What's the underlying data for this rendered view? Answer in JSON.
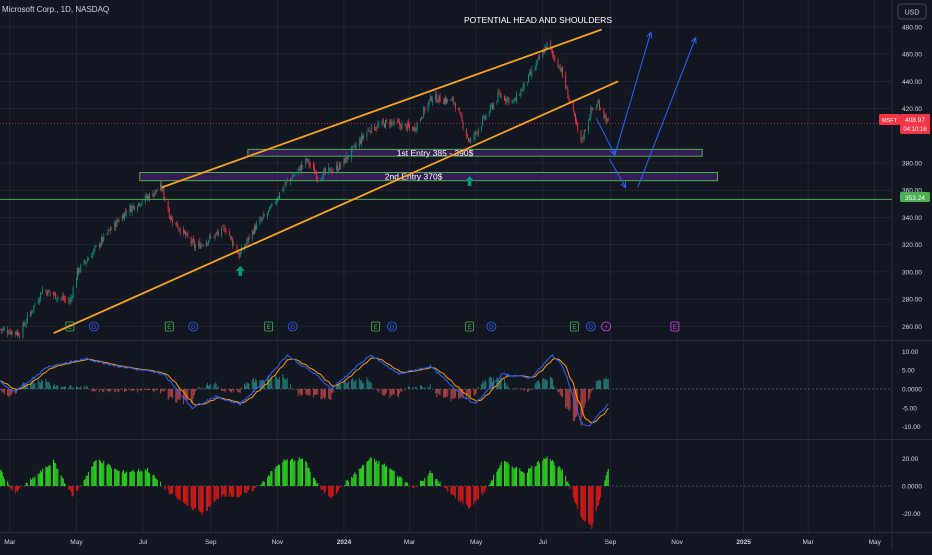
{
  "header": {
    "symbol_line": "Microsoft Corp., 1D, NASDAQ",
    "currency_button": "USD"
  },
  "chart_data": {
    "type": "candlestick",
    "title": "POTENTIAL HEAD AND SHOULDERS",
    "symbol": "MSFT",
    "ticker_label": "MSFT",
    "last_price": "408.97",
    "countdown": "04:10:16",
    "price_ticks": [
      "480.00",
      "460.00",
      "440.00",
      "420.00",
      "380.00",
      "360.00",
      "340.00",
      "320.00",
      "300.00",
      "280.00",
      "260.00"
    ],
    "price_range": [
      250,
      485
    ],
    "support_level": {
      "label": "353.24",
      "price": 353.24
    },
    "time_ticks": [
      "Mar",
      "May",
      "Jul",
      "Sep",
      "Nov",
      "2024",
      "Mar",
      "May",
      "Jul",
      "Sep",
      "Nov",
      "2025",
      "Mar",
      "May"
    ],
    "price_series": {
      "points": [
        [
          "2023-02-20",
          258
        ],
        [
          "2023-03-10",
          255
        ],
        [
          "2023-03-31",
          287
        ],
        [
          "2023-04-25",
          278
        ],
        [
          "2023-05-02",
          300
        ],
        [
          "2023-05-31",
          330
        ],
        [
          "2023-06-16",
          345
        ],
        [
          "2023-07-18",
          362
        ],
        [
          "2023-07-26",
          340
        ],
        [
          "2023-08-18",
          318
        ],
        [
          "2023-09-15",
          332
        ],
        [
          "2023-09-27",
          312
        ],
        [
          "2023-10-11",
          332
        ],
        [
          "2023-10-25",
          345
        ],
        [
          "2023-11-06",
          362
        ],
        [
          "2023-11-28",
          382
        ],
        [
          "2023-12-08",
          370
        ],
        [
          "2023-12-29",
          378
        ],
        [
          "2024-01-24",
          405
        ],
        [
          "2024-02-12",
          410
        ],
        [
          "2024-03-05",
          405
        ],
        [
          "2024-03-21",
          428
        ],
        [
          "2024-04-11",
          425
        ],
        [
          "2024-04-25",
          395
        ],
        [
          "2024-05-22",
          430
        ],
        [
          "2024-06-05",
          425
        ],
        [
          "2024-06-20",
          445
        ],
        [
          "2024-07-05",
          467
        ],
        [
          "2024-07-17",
          450
        ],
        [
          "2024-07-24",
          430
        ],
        [
          "2024-08-05",
          395
        ],
        [
          "2024-08-14",
          418
        ],
        [
          "2024-08-21",
          424
        ],
        [
          "2024-08-30",
          408.97
        ]
      ]
    },
    "upper_trendline": {
      "from": [
        "2023-07-18",
        362
      ],
      "to": [
        "2024-08-24",
        478
      ]
    },
    "lower_trendline": {
      "from": [
        "2023-04-10",
        255
      ],
      "to": [
        "2024-09-08",
        440
      ]
    },
    "entry_zones": [
      {
        "label": "1st Entry 385 - 390$",
        "low": 385,
        "high": 390
      },
      {
        "label": "2nd Entry 370$",
        "low": 367,
        "high": 373
      }
    ],
    "projection_arrows": [
      {
        "from": [
          "2024-08-19",
          413
        ],
        "to": [
          "2024-09-05",
          386
        ]
      },
      {
        "from": [
          "2024-09-05",
          386
        ],
        "to": [
          "2024-10-08",
          476
        ]
      },
      {
        "from": [
          "2024-08-31",
          383
        ],
        "to": [
          "2024-09-15",
          362
        ]
      },
      {
        "from": [
          "2024-09-26",
          362
        ],
        "to": [
          "2024-11-18",
          472
        ]
      }
    ],
    "up_markers": [
      [
        "2023-09-28",
        300
      ],
      [
        "2024-04-25",
        366
      ]
    ],
    "event_markers": [
      {
        "type": "E",
        "date": "2023-04-25"
      },
      {
        "type": "D",
        "date": "2023-05-17"
      },
      {
        "type": "E",
        "date": "2023-07-25"
      },
      {
        "type": "D",
        "date": "2023-08-16"
      },
      {
        "type": "E",
        "date": "2023-10-24"
      },
      {
        "type": "D",
        "date": "2023-11-15"
      },
      {
        "type": "E",
        "date": "2024-01-30"
      },
      {
        "type": "D",
        "date": "2024-02-14"
      },
      {
        "type": "E",
        "date": "2024-04-25"
      },
      {
        "type": "D",
        "date": "2024-05-15"
      },
      {
        "type": "E",
        "date": "2024-07-30"
      },
      {
        "type": "D",
        "date": "2024-08-14"
      },
      {
        "type": "S",
        "date": "2024-08-28"
      },
      {
        "type": "E",
        "date": "2024-10-30"
      }
    ],
    "oscillator1": {
      "ticks": [
        "10.00",
        "5.00",
        "0.0000",
        "-5.00",
        "-10.00"
      ],
      "range": [
        -12.5,
        12.5
      ],
      "points": [
        [
          "2023-02-20",
          2
        ],
        [
          "2023-03-05",
          -1
        ],
        [
          "2023-04-05",
          6
        ],
        [
          "2023-05-10",
          8
        ],
        [
          "2023-06-10",
          6
        ],
        [
          "2023-07-20",
          4
        ],
        [
          "2023-08-15",
          -5
        ],
        [
          "2023-09-05",
          -2
        ],
        [
          "2023-09-28",
          -4
        ],
        [
          "2023-10-20",
          2
        ],
        [
          "2023-11-10",
          9
        ],
        [
          "2023-12-10",
          3
        ],
        [
          "2023-12-20",
          0
        ],
        [
          "2024-01-25",
          9
        ],
        [
          "2024-02-20",
          4
        ],
        [
          "2024-03-20",
          6
        ],
        [
          "2024-04-20",
          -2
        ],
        [
          "2024-04-30",
          -4
        ],
        [
          "2024-05-25",
          4
        ],
        [
          "2024-06-20",
          3
        ],
        [
          "2024-07-10",
          9
        ],
        [
          "2024-07-20",
          6
        ],
        [
          "2024-08-05",
          -9
        ],
        [
          "2024-08-12",
          -10
        ],
        [
          "2024-08-30",
          -4
        ]
      ]
    },
    "oscillator2": {
      "ticks": [
        "20.00",
        "0.0000",
        "-20.00"
      ],
      "range": [
        -32,
        32
      ],
      "points": [
        [
          "2023-02-20",
          12
        ],
        [
          "2023-03-05",
          -6
        ],
        [
          "2023-04-10",
          18
        ],
        [
          "2023-04-28",
          -8
        ],
        [
          "2023-05-20",
          20
        ],
        [
          "2023-06-10",
          10
        ],
        [
          "2023-07-05",
          12
        ],
        [
          "2023-07-25",
          -5
        ],
        [
          "2023-08-10",
          -14
        ],
        [
          "2023-08-25",
          -20
        ],
        [
          "2023-09-12",
          -6
        ],
        [
          "2023-09-28",
          -8
        ],
        [
          "2023-10-15",
          0
        ],
        [
          "2023-11-05",
          18
        ],
        [
          "2023-11-25",
          20
        ],
        [
          "2023-12-10",
          -2
        ],
        [
          "2023-12-20",
          -8
        ],
        [
          "2024-01-05",
          4
        ],
        [
          "2024-01-25",
          20
        ],
        [
          "2024-02-10",
          14
        ],
        [
          "2024-03-05",
          -2
        ],
        [
          "2024-03-20",
          10
        ],
        [
          "2024-04-05",
          -4
        ],
        [
          "2024-04-25",
          -16
        ],
        [
          "2024-05-10",
          -3
        ],
        [
          "2024-05-25",
          18
        ],
        [
          "2024-06-15",
          10
        ],
        [
          "2024-07-05",
          22
        ],
        [
          "2024-07-20",
          10
        ],
        [
          "2024-08-05",
          -22
        ],
        [
          "2024-08-15",
          -30
        ],
        [
          "2024-08-30",
          12
        ]
      ]
    },
    "colors": {
      "background": "#131722",
      "up": "#089981",
      "down": "#f23645",
      "trendline": "#f7a21b",
      "zone_fill": "#3b1f5e",
      "zone_border": "#4caf50",
      "arrow": "#2962ff",
      "osc1_fast": "#2962ff",
      "osc1_slow": "#ff9800",
      "hist_green": "#26a69a",
      "hist_red": "#ef5350",
      "osc2_green": "#2bd11f",
      "osc2_red": "#d31818",
      "grid": "#2a2e39",
      "text": "#d1d4dc"
    }
  }
}
